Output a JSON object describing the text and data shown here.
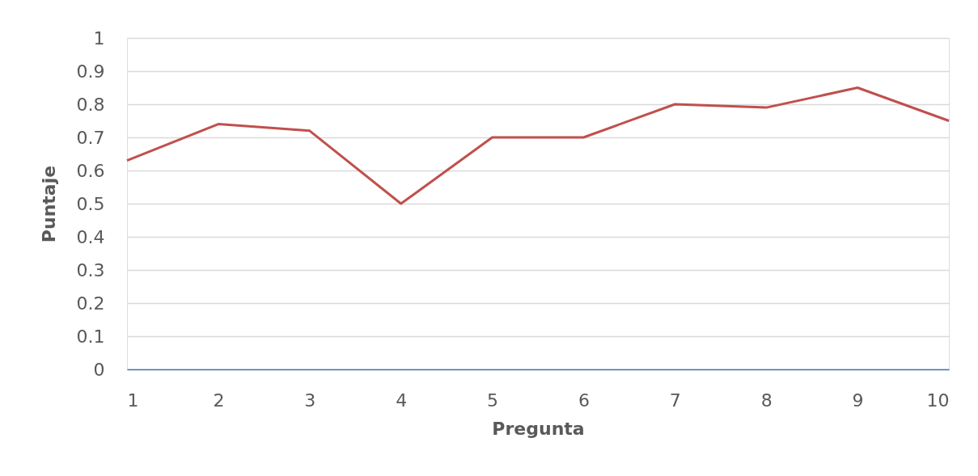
{
  "chart_data": {
    "type": "line",
    "xlabel": "Pregunta",
    "ylabel": "Puntaje",
    "x": [
      1,
      2,
      3,
      4,
      5,
      6,
      7,
      8,
      9,
      10
    ],
    "series": [
      {
        "color": "#c0504d",
        "values": [
          0.63,
          0.74,
          0.72,
          0.5,
          0.7,
          0.7,
          0.8,
          0.79,
          0.85,
          0.75
        ]
      }
    ],
    "xlim": [
      1,
      10
    ],
    "xticks": [
      1,
      2,
      3,
      4,
      5,
      6,
      7,
      8,
      9,
      10
    ],
    "ylim": [
      0,
      1
    ],
    "yticks": [
      0,
      0.1,
      0.2,
      0.3,
      0.4,
      0.5,
      0.6,
      0.7,
      0.8,
      0.9,
      1
    ],
    "grid": "y",
    "legend": false,
    "marker": "none",
    "line_style": "solid"
  }
}
